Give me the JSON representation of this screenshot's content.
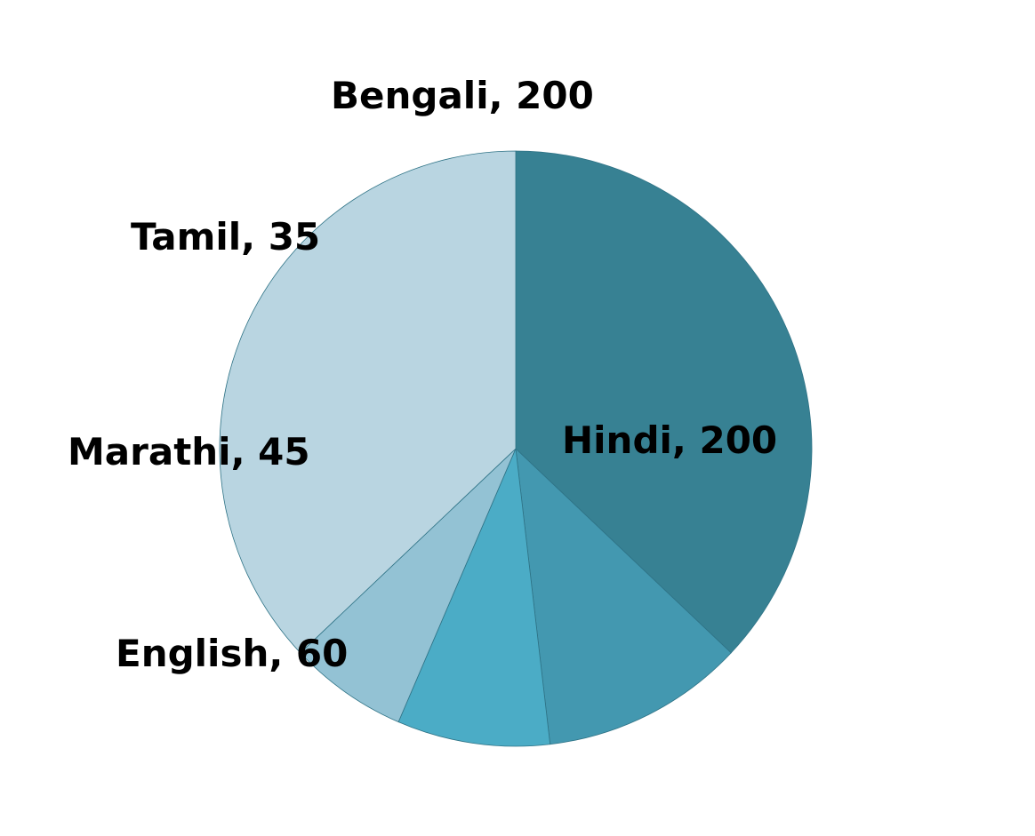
{
  "chart_data": {
    "type": "pie",
    "slices": [
      {
        "label": "Hindi, 200",
        "category": "Hindi",
        "value": 200,
        "color": "#378193"
      },
      {
        "label": "English, 60",
        "category": "English",
        "value": 60,
        "color": "#4398B0"
      },
      {
        "label": "Marathi, 45",
        "category": "Marathi",
        "value": 45,
        "color": "#4BACC6"
      },
      {
        "label": "Tamil, 35",
        "category": "Tamil",
        "value": 35,
        "color": "#93C2D4"
      },
      {
        "label": "Bengali, 200",
        "category": "Bengali",
        "value": 200,
        "color": "#B9D5E1"
      }
    ]
  }
}
